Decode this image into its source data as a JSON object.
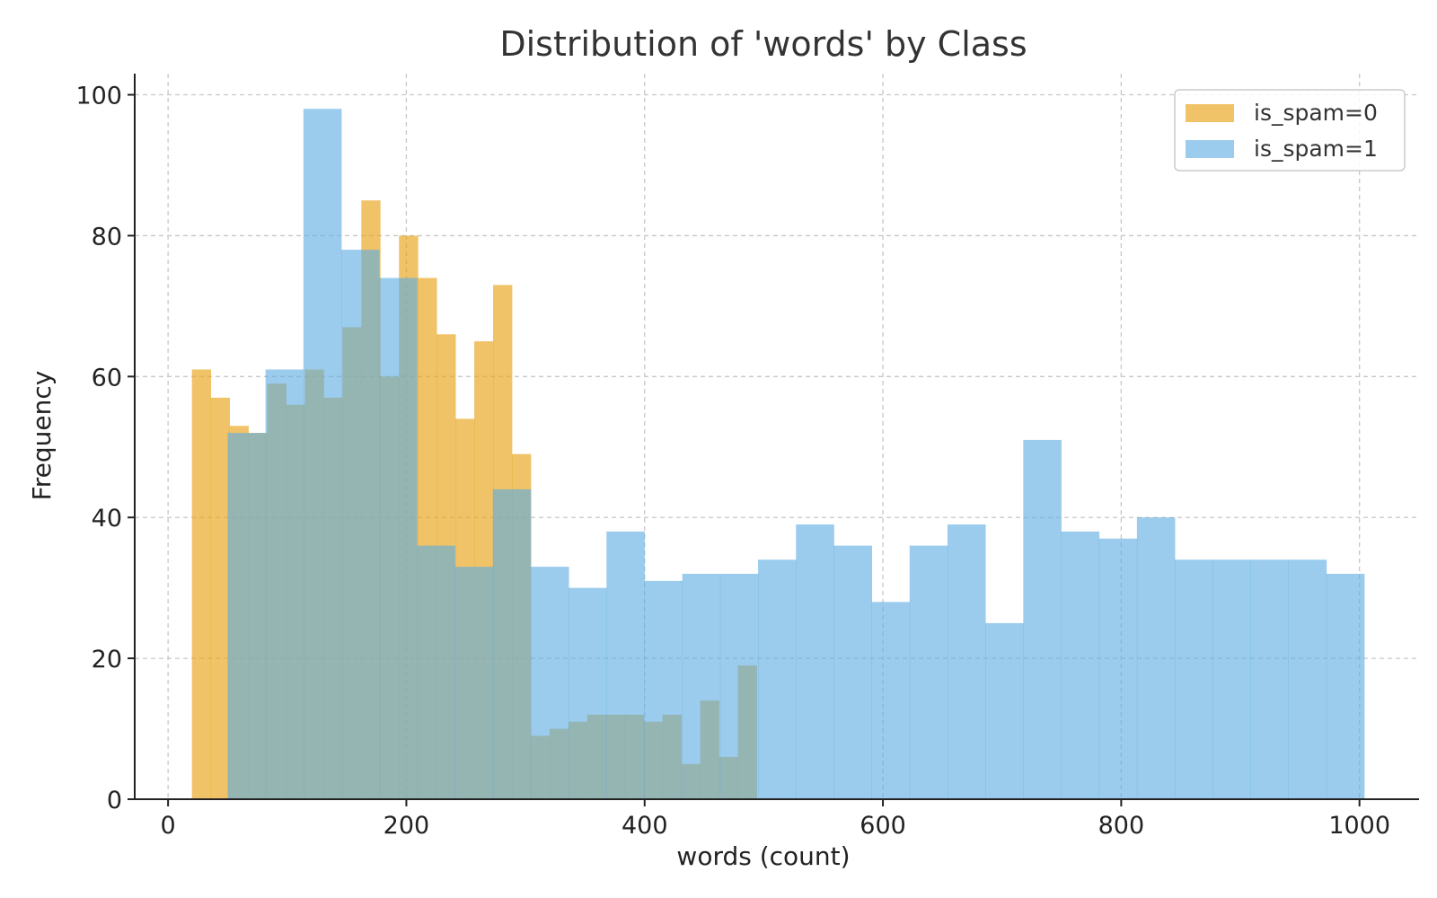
{
  "chart_data": {
    "type": "histogram",
    "title": "Distribution of 'words' by Class",
    "xlabel": "words (count)",
    "ylabel": "Frequency",
    "xlim": [
      -28,
      1050
    ],
    "ylim": [
      0,
      103
    ],
    "xticks": [
      0,
      200,
      400,
      600,
      800,
      1000
    ],
    "yticks": [
      0,
      20,
      40,
      60,
      80,
      100
    ],
    "grid": true,
    "legend_position": "top-right",
    "series": [
      {
        "name": "is_spam=0",
        "color": "#E8A317",
        "opacity": 0.65,
        "bin_edges": [
          20,
          35.8,
          51.6,
          67.4,
          83.2,
          99,
          114.8,
          130.6,
          146.4,
          162.2,
          178,
          193.8,
          209.6,
          225.4,
          241.2,
          257,
          272.8,
          288.6,
          304.4,
          320.2,
          336,
          351.8,
          367.6,
          383.4,
          399.2,
          415,
          430.8,
          446.6,
          462.4,
          478.2,
          494
        ],
        "values": [
          61,
          57,
          53,
          52,
          59,
          56,
          61,
          57,
          67,
          85,
          60,
          80,
          74,
          66,
          54,
          65,
          73,
          49,
          9,
          10,
          11,
          12,
          12,
          12,
          11,
          12,
          5,
          14,
          6,
          19
        ]
      },
      {
        "name": "is_spam=1",
        "color": "#5DADE2",
        "opacity": 0.62,
        "bin_edges": [
          50,
          81.8,
          113.6,
          145.4,
          177.2,
          209,
          240.8,
          272.6,
          304.4,
          336.2,
          368,
          399.8,
          431.6,
          463.4,
          495.2,
          527,
          558.8,
          590.6,
          622.4,
          654.2,
          686,
          717.8,
          749.6,
          781.4,
          813.2,
          845,
          876.8,
          908.6,
          940.4,
          972.2,
          1004
        ],
        "values": [
          52,
          61,
          98,
          78,
          74,
          36,
          33,
          44,
          33,
          30,
          38,
          31,
          32,
          32,
          34,
          39,
          36,
          28,
          36,
          39,
          25,
          51,
          38,
          37,
          40,
          34,
          34,
          34,
          34,
          32
        ]
      }
    ]
  }
}
